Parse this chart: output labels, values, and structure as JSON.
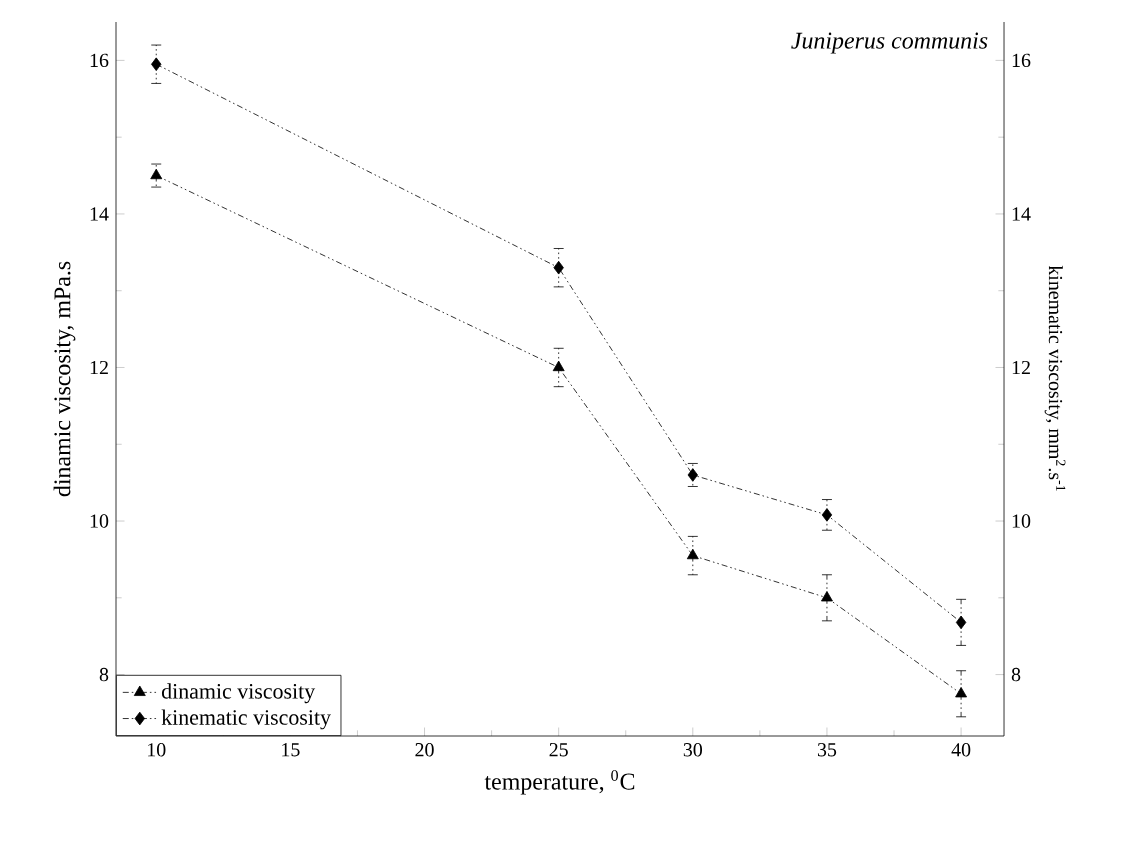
{
  "chart_data": {
    "type": "line",
    "annotations": [
      "*Juniperus communis*"
    ],
    "xlabel": "temperature, $^{0}$C",
    "ylabel": "dinamic viscosity, mPa.s",
    "y2label": "kinematic viscosity, mm$^{2}$.s$^{-1}$",
    "x": [
      10,
      25,
      30,
      35,
      40
    ],
    "series": [
      {
        "name": "dinamic viscosity",
        "color": "#000000",
        "marker": "triangle",
        "values": [
          14.5,
          12.0,
          9.55,
          9.0,
          7.75
        ],
        "errors": [
          0.15,
          0.25,
          0.25,
          0.3,
          0.3
        ]
      },
      {
        "name": "kinematic viscosity",
        "color": "#000000",
        "marker": "diamond",
        "axis": "y2",
        "values": [
          15.95,
          13.3,
          10.6,
          10.08,
          8.68
        ],
        "errors": [
          0.25,
          0.25,
          0.15,
          0.2,
          0.3
        ]
      }
    ],
    "xlim": [
      8.5,
      41.6
    ],
    "xticks": [
      10,
      15,
      20,
      25,
      30,
      35,
      40
    ],
    "ylim": [
      7.2,
      16.5
    ],
    "yticks": [
      8,
      10,
      12,
      14,
      16
    ],
    "y2lim": [
      7.2,
      16.5
    ],
    "y2ticks": [
      8,
      10,
      12,
      14,
      16
    ],
    "line_style": "dashed",
    "legend": "bottom left",
    "grid": false
  }
}
